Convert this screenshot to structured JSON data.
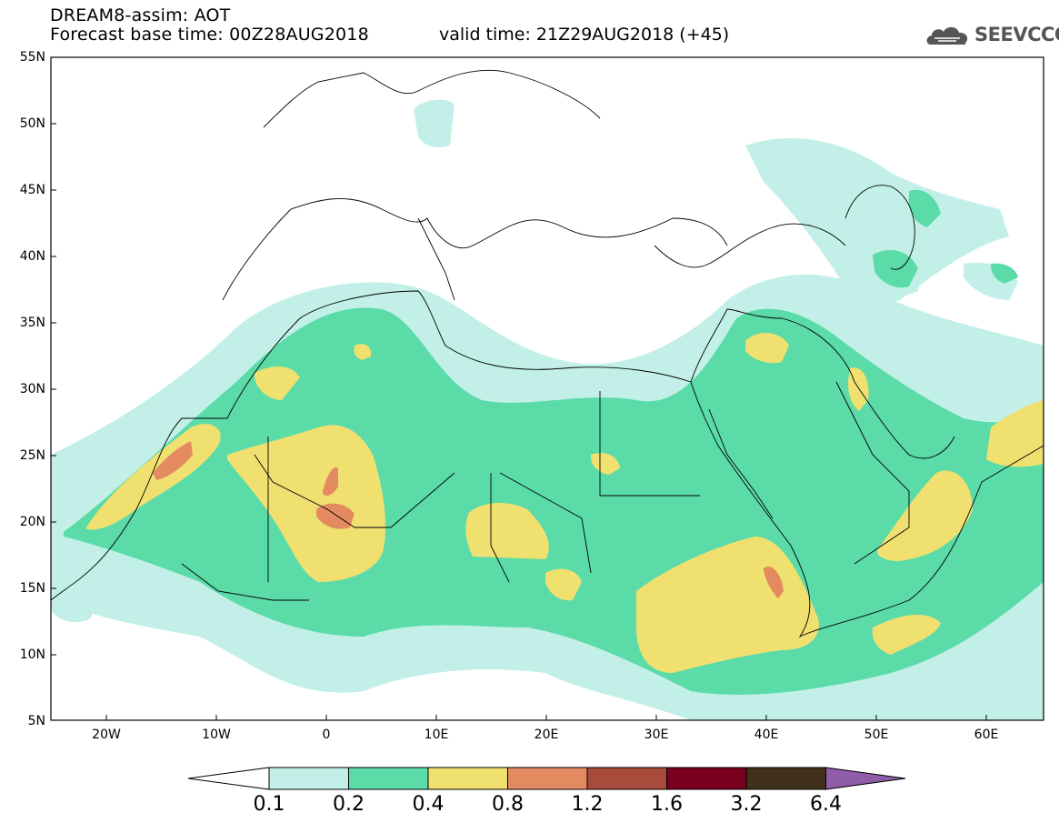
{
  "header": {
    "title": "DREAM8-assim: AOT",
    "base_time_label": "Forecast base time: 00Z28AUG2018",
    "valid_time_label": "valid time: 21Z29AUG2018 (+45)",
    "logo_text": "SEEVCCC",
    "logo_icon": "cloud-logo-icon"
  },
  "map": {
    "variable": "AOT",
    "lat_labels": [
      "55N",
      "50N",
      "45N",
      "40N",
      "35N",
      "30N",
      "25N",
      "20N",
      "15N",
      "10N",
      "5N"
    ],
    "lon_labels": [
      "20W",
      "10W",
      "0",
      "10E",
      "20E",
      "30E",
      "40E",
      "50E",
      "60E"
    ]
  },
  "colorbar": {
    "levels": [
      "0.1",
      "0.2",
      "0.4",
      "0.8",
      "1.2",
      "1.6",
      "3.2",
      "6.4"
    ],
    "colors": [
      "#ffffff",
      "#c2f0e8",
      "#5bdba8",
      "#f0e070",
      "#e48a60",
      "#a84a3c",
      "#7a0020",
      "#40301a",
      "#8e5ca8"
    ]
  }
}
